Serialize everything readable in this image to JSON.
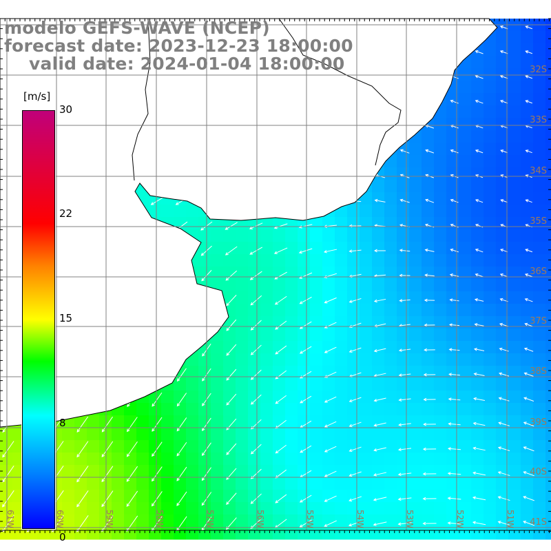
{
  "title": {
    "line1": "modelo GEFS-WAVE (NCEP)",
    "line2": "forecast date: 2023-12-23 18:00:00",
    "line3": "valid date: 2024-01-04 18:00:00"
  },
  "colorbar": {
    "unit": "[m/s]",
    "labels": [
      "30",
      "22",
      "15",
      "8",
      "0"
    ],
    "min": 0,
    "max": 30,
    "colors": [
      "#0000ff",
      "#0080ff",
      "#00ffff",
      "#00ff00",
      "#ffff00",
      "#ff8000",
      "#ff0000",
      "#c0007a"
    ]
  },
  "lat_labels": [
    "32S",
    "33S",
    "34S",
    "35S",
    "36S",
    "37S",
    "38S",
    "39S",
    "40S",
    "41S"
  ],
  "lon_labels": [
    "61W",
    "60W",
    "59W",
    "58W",
    "57W",
    "56W",
    "55W",
    "54W",
    "53W",
    "52W",
    "51W"
  ],
  "colors": {
    "title": "#808080",
    "grid": "#808080",
    "land": "#ffffff",
    "arrow": "#ffffff"
  }
}
